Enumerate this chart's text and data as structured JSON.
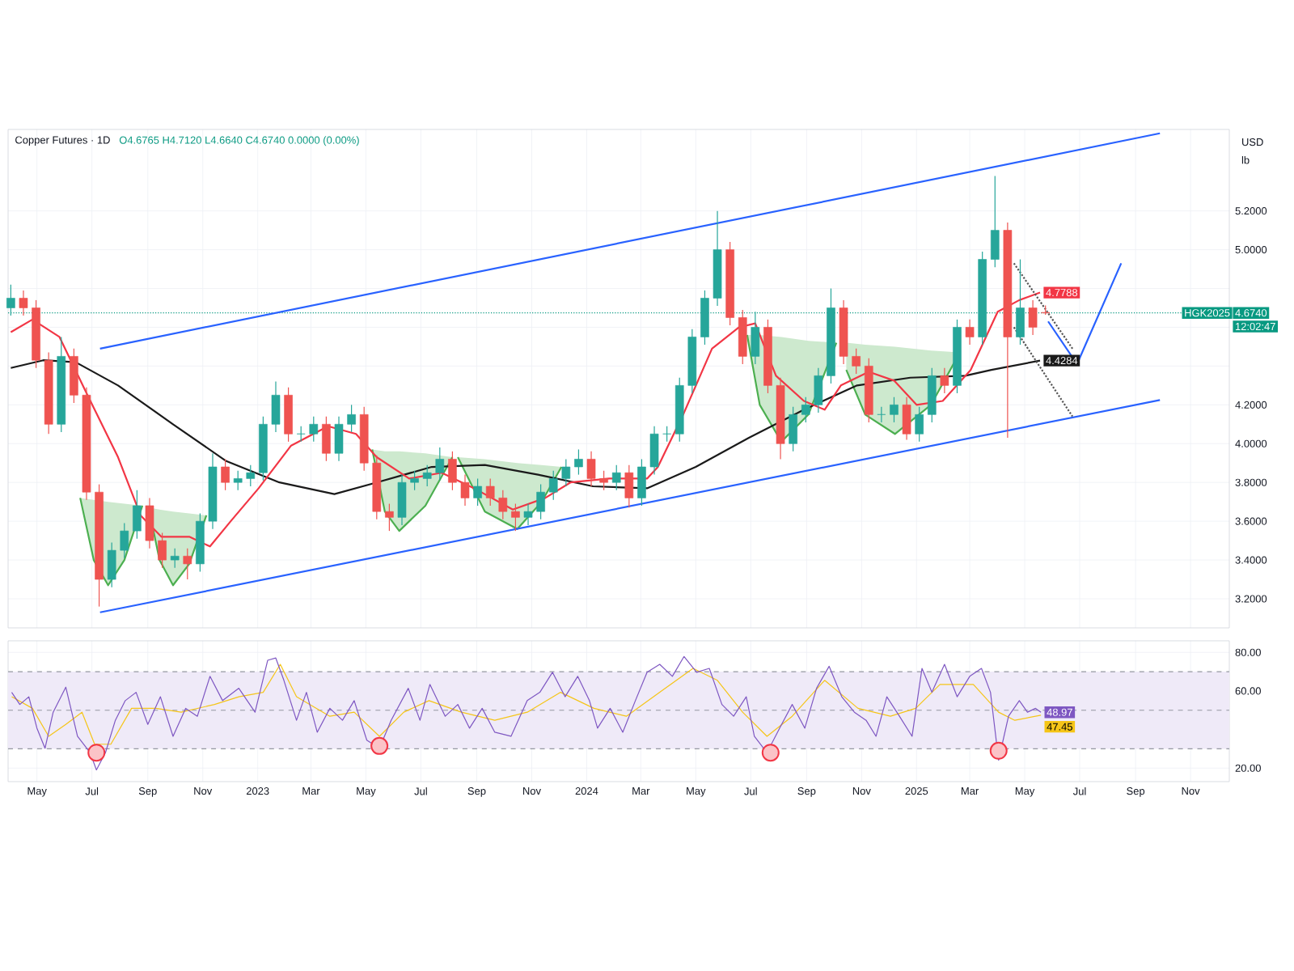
{
  "chart_data": [
    {
      "type": "candlestick",
      "title": "Copper Futures · 1D",
      "subtitle": "O4.6765 H4.7120 L4.6640 C4.6740 0.0000 (0.00%)",
      "x": [
        "2022-04-02",
        "2022-04-16",
        "2022-04-30",
        "2022-05-14",
        "2022-05-28",
        "2022-06-11",
        "2022-06-25",
        "2022-07-09",
        "2022-07-23",
        "2022-08-06",
        "2022-08-20",
        "2022-09-03",
        "2022-09-17",
        "2022-10-01",
        "2022-10-15",
        "2022-10-29",
        "2022-11-12",
        "2022-11-26",
        "2022-12-10",
        "2022-12-24",
        "2023-01-07",
        "2023-01-21",
        "2023-02-04",
        "2023-02-18",
        "2023-03-04",
        "2023-03-18",
        "2023-04-01",
        "2023-04-15",
        "2023-04-29",
        "2023-05-13",
        "2023-05-27",
        "2023-06-10",
        "2023-06-24",
        "2023-07-08",
        "2023-07-22",
        "2023-08-05",
        "2023-08-19",
        "2023-09-02",
        "2023-09-16",
        "2023-09-30",
        "2023-10-14",
        "2023-10-28",
        "2023-11-11",
        "2023-11-25",
        "2023-12-09",
        "2023-12-23",
        "2024-01-06",
        "2024-01-20",
        "2024-02-03",
        "2024-02-17",
        "2024-03-02",
        "2024-03-16",
        "2024-03-30",
        "2024-04-13",
        "2024-04-27",
        "2024-05-11",
        "2024-05-25",
        "2024-06-08",
        "2024-06-22",
        "2024-07-06",
        "2024-07-20",
        "2024-08-03",
        "2024-08-17",
        "2024-08-31",
        "2024-09-14",
        "2024-09-28",
        "2024-10-12",
        "2024-10-26",
        "2024-11-09",
        "2024-11-23",
        "2024-12-07",
        "2024-12-21",
        "2025-01-04",
        "2025-01-18",
        "2025-02-01",
        "2025-02-15",
        "2025-03-01",
        "2025-03-15",
        "2025-03-29",
        "2025-04-12",
        "2025-04-26",
        "2025-05-10",
        "2025-05-24"
      ],
      "ohlc": [
        [
          4.7,
          4.82,
          4.66,
          4.75
        ],
        [
          4.75,
          4.79,
          4.66,
          4.7
        ],
        [
          4.7,
          4.74,
          4.39,
          4.43
        ],
        [
          4.43,
          4.47,
          4.05,
          4.1
        ],
        [
          4.1,
          4.55,
          4.06,
          4.45
        ],
        [
          4.45,
          4.49,
          4.21,
          4.25
        ],
        [
          4.25,
          4.29,
          3.71,
          3.75
        ],
        [
          3.75,
          3.79,
          3.16,
          3.3
        ],
        [
          3.3,
          3.49,
          3.26,
          3.45
        ],
        [
          3.45,
          3.59,
          3.41,
          3.55
        ],
        [
          3.55,
          3.76,
          3.51,
          3.68
        ],
        [
          3.68,
          3.72,
          3.46,
          3.5
        ],
        [
          3.5,
          3.54,
          3.36,
          3.4
        ],
        [
          3.4,
          3.46,
          3.36,
          3.42
        ],
        [
          3.42,
          3.46,
          3.3,
          3.38
        ],
        [
          3.38,
          3.64,
          3.34,
          3.6
        ],
        [
          3.6,
          3.95,
          3.56,
          3.88
        ],
        [
          3.88,
          3.92,
          3.76,
          3.8
        ],
        [
          3.8,
          3.86,
          3.76,
          3.82
        ],
        [
          3.82,
          3.89,
          3.78,
          3.85
        ],
        [
          3.85,
          4.14,
          3.81,
          4.1
        ],
        [
          4.1,
          4.32,
          4.06,
          4.25
        ],
        [
          4.25,
          4.29,
          4.01,
          4.05
        ],
        [
          4.05,
          4.09,
          4.01,
          4.05
        ],
        [
          4.05,
          4.14,
          4.01,
          4.1
        ],
        [
          4.1,
          4.14,
          3.91,
          3.95
        ],
        [
          3.95,
          4.14,
          3.91,
          4.1
        ],
        [
          4.1,
          4.2,
          4.06,
          4.15
        ],
        [
          4.15,
          4.19,
          3.86,
          3.9
        ],
        [
          3.9,
          3.94,
          3.61,
          3.65
        ],
        [
          3.65,
          3.69,
          3.55,
          3.62
        ],
        [
          3.62,
          3.84,
          3.58,
          3.8
        ],
        [
          3.8,
          3.86,
          3.76,
          3.82
        ],
        [
          3.82,
          3.89,
          3.78,
          3.85
        ],
        [
          3.85,
          3.98,
          3.81,
          3.92
        ],
        [
          3.92,
          3.96,
          3.76,
          3.8
        ],
        [
          3.8,
          3.84,
          3.68,
          3.72
        ],
        [
          3.72,
          3.82,
          3.68,
          3.78
        ],
        [
          3.78,
          3.82,
          3.68,
          3.72
        ],
        [
          3.72,
          3.76,
          3.61,
          3.65
        ],
        [
          3.65,
          3.69,
          3.55,
          3.62
        ],
        [
          3.62,
          3.69,
          3.58,
          3.65
        ],
        [
          3.65,
          3.79,
          3.61,
          3.75
        ],
        [
          3.75,
          3.86,
          3.71,
          3.82
        ],
        [
          3.82,
          3.92,
          3.78,
          3.88
        ],
        [
          3.88,
          3.97,
          3.84,
          3.92
        ],
        [
          3.92,
          3.96,
          3.78,
          3.82
        ],
        [
          3.82,
          3.86,
          3.76,
          3.8
        ],
        [
          3.8,
          3.89,
          3.76,
          3.85
        ],
        [
          3.85,
          3.89,
          3.67,
          3.72
        ],
        [
          3.72,
          3.92,
          3.68,
          3.88
        ],
        [
          3.88,
          4.09,
          3.84,
          4.05
        ],
        [
          4.05,
          4.09,
          4.01,
          4.05
        ],
        [
          4.05,
          4.34,
          4.01,
          4.3
        ],
        [
          4.3,
          4.59,
          4.26,
          4.55
        ],
        [
          4.55,
          4.79,
          4.51,
          4.75
        ],
        [
          4.75,
          5.2,
          4.71,
          5.0
        ],
        [
          5.0,
          5.04,
          4.61,
          4.65
        ],
        [
          4.65,
          4.69,
          4.41,
          4.45
        ],
        [
          4.45,
          4.68,
          4.41,
          4.6
        ],
        [
          4.6,
          4.64,
          4.26,
          4.3
        ],
        [
          4.3,
          4.34,
          3.92,
          4.0
        ],
        [
          4.0,
          4.19,
          3.96,
          4.15
        ],
        [
          4.15,
          4.24,
          4.11,
          4.2
        ],
        [
          4.2,
          4.39,
          4.16,
          4.35
        ],
        [
          4.35,
          4.8,
          4.31,
          4.7
        ],
        [
          4.7,
          4.74,
          4.41,
          4.45
        ],
        [
          4.45,
          4.49,
          4.36,
          4.4
        ],
        [
          4.4,
          4.44,
          4.11,
          4.15
        ],
        [
          4.15,
          4.19,
          4.11,
          4.15
        ],
        [
          4.15,
          4.24,
          4.11,
          4.2
        ],
        [
          4.2,
          4.24,
          4.02,
          4.05
        ],
        [
          4.05,
          4.19,
          4.01,
          4.15
        ],
        [
          4.15,
          4.39,
          4.11,
          4.35
        ],
        [
          4.35,
          4.39,
          4.26,
          4.3
        ],
        [
          4.3,
          4.64,
          4.26,
          4.6
        ],
        [
          4.6,
          4.64,
          4.51,
          4.55
        ],
        [
          4.55,
          4.99,
          4.51,
          4.95
        ],
        [
          4.95,
          5.38,
          4.91,
          5.1
        ],
        [
          5.1,
          5.14,
          4.03,
          4.55
        ],
        [
          4.55,
          4.95,
          4.51,
          4.7
        ],
        [
          4.7,
          4.74,
          4.56,
          4.6
        ],
        [
          4.6765,
          4.712,
          4.664,
          4.674
        ]
      ],
      "xlim": [
        "2022-03-30",
        "2025-12-14"
      ],
      "xticks": [
        {
          "value": "2022-05-01",
          "label": null
        },
        {
          "value": "2022-07-01",
          "label": null
        },
        {
          "value": "2022-09-01",
          "label": null
        },
        {
          "value": "2022-11-01",
          "label": null
        },
        {
          "value": "2023-01-01",
          "label": null
        },
        {
          "value": "2023-03-01",
          "label": null
        },
        {
          "value": "2023-05-01",
          "label": null
        },
        {
          "value": "2023-07-01",
          "label": null
        },
        {
          "value": "2023-09-01",
          "label": null
        },
        {
          "value": "2023-11-01",
          "label": null
        },
        {
          "value": "2024-01-01",
          "label": null
        },
        {
          "value": "2024-03-01",
          "label": null
        },
        {
          "value": "2024-05-01",
          "label": null
        },
        {
          "value": "2024-07-01",
          "label": null
        },
        {
          "value": "2024-09-01",
          "label": null
        },
        {
          "value": "2024-11-01",
          "label": null
        },
        {
          "value": "2025-01-01",
          "label": null
        },
        {
          "value": "2025-03-01",
          "label": null
        },
        {
          "value": "2025-05-01",
          "label": null
        },
        {
          "value": "2025-07-01",
          "label": null
        },
        {
          "value": "2025-09-01",
          "label": null
        },
        {
          "value": "2025-11-01",
          "label": null
        }
      ],
      "ylim": [
        3.05,
        5.62
      ],
      "yticks": [
        {
          "value": 3.2,
          "label": "3.2000"
        },
        {
          "value": 3.4,
          "label": "3.4000"
        },
        {
          "value": 3.6,
          "label": "3.6000"
        },
        {
          "value": 3.8,
          "label": "3.8000"
        },
        {
          "value": 4.0,
          "label": "4.0000"
        },
        {
          "value": 4.2,
          "label": "4.2000"
        },
        {
          "value": 4.4,
          "label": null
        },
        {
          "value": 4.6,
          "label": null
        },
        {
          "value": 4.8,
          "label": null
        },
        {
          "value": 5.0,
          "label": "5.0000"
        },
        {
          "value": 5.2,
          "label": "5.2000"
        }
      ],
      "tick_labels": "y",
      "grid": true,
      "ref_lines": [
        {
          "axis": "y",
          "value": 4.674,
          "label": "4.6740",
          "color": "#089981",
          "line_style": "dotted"
        }
      ],
      "annotations": [
        "USD",
        "lb",
        "HGK2025",
        "12:02:47"
      ],
      "series": [
        {
          "type": "line",
          "color": "#4caf50",
          "x": [
            "2022-06-18",
            "2022-07-03",
            "2022-07-19",
            "2022-08-06",
            "2022-08-26"
          ],
          "values": [
            3.72,
            3.4,
            3.27,
            3.4,
            3.68
          ],
          "lower": [
            3.72,
            3.4,
            3.27,
            3.4,
            3.68
          ],
          "upper": [
            3.72,
            3.71,
            3.7,
            3.69,
            3.68
          ]
        },
        {
          "type": "line",
          "color": "#4caf50",
          "x": [
            "2022-09-02",
            "2022-09-14",
            "2022-09-29",
            "2022-10-17",
            "2022-11-05"
          ],
          "values": [
            3.67,
            3.4,
            3.27,
            3.38,
            3.63
          ],
          "lower": [
            3.67,
            3.4,
            3.27,
            3.38,
            3.63
          ],
          "upper": [
            3.67,
            3.66,
            3.65,
            3.64,
            3.63
          ]
        },
        {
          "type": "line",
          "color": "#4caf50",
          "x": [
            "2023-05-08",
            "2023-05-22",
            "2023-06-07",
            "2023-07-06",
            "2023-08-05"
          ],
          "values": [
            3.97,
            3.65,
            3.55,
            3.68,
            3.93
          ],
          "lower": [
            3.97,
            3.65,
            3.55,
            3.68,
            3.93
          ],
          "upper": [
            3.97,
            3.96,
            3.96,
            3.95,
            3.93
          ]
        },
        {
          "type": "line",
          "color": "#4caf50",
          "x": [
            "2023-08-11",
            "2023-09-10",
            "2023-10-16",
            "2023-11-12",
            "2023-12-04"
          ],
          "values": [
            3.93,
            3.65,
            3.56,
            3.7,
            3.88
          ],
          "lower": [
            3.93,
            3.65,
            3.56,
            3.7,
            3.88
          ],
          "upper": [
            3.93,
            3.92,
            3.9,
            3.89,
            3.88
          ]
        },
        {
          "type": "line",
          "color": "#4caf50",
          "x": [
            "2024-06-27",
            "2024-07-11",
            "2024-08-04",
            "2024-09-03",
            "2024-10-04"
          ],
          "values": [
            4.56,
            4.2,
            4.01,
            4.15,
            4.52
          ],
          "lower": [
            4.56,
            4.2,
            4.01,
            4.15,
            4.52
          ],
          "upper": [
            4.56,
            4.56,
            4.55,
            4.53,
            4.52
          ]
        },
        {
          "type": "line",
          "color": "#4caf50",
          "x": [
            "2024-10-15",
            "2024-11-05",
            "2024-12-08",
            "2025-01-17",
            "2025-02-18"
          ],
          "values": [
            4.38,
            4.15,
            4.05,
            4.2,
            4.47
          ],
          "lower": [
            4.38,
            4.15,
            4.05,
            4.2,
            4.47
          ],
          "upper": [
            4.52,
            4.51,
            4.5,
            4.48,
            4.47
          ]
        },
        {
          "type": "line",
          "color": "#2962ff",
          "x": [
            "2022-07-10",
            "2025-09-28"
          ],
          "values": [
            4.49,
            5.6
          ]
        },
        {
          "type": "line",
          "color": "#2962ff",
          "x": [
            "2022-07-10",
            "2025-09-28"
          ],
          "values": [
            3.13,
            4.225
          ]
        },
        {
          "type": "line",
          "color": "#1a1a1a",
          "x": [
            "2022-04-02",
            "2022-05-08",
            "2022-06-13",
            "2022-07-30",
            "2022-09-29",
            "2022-11-27",
            "2023-01-25",
            "2023-03-27",
            "2023-05-13",
            "2023-07-13",
            "2023-09-10",
            "2023-11-08",
            "2024-01-08",
            "2024-03-08",
            "2024-05-01",
            "2024-06-29",
            "2024-08-29",
            "2024-10-27",
            "2024-12-25",
            "2025-02-24",
            "2025-03-25",
            "2025-05-18"
          ],
          "values": [
            4.39,
            4.43,
            4.42,
            4.3,
            4.1,
            3.91,
            3.8,
            3.74,
            3.8,
            3.88,
            3.89,
            3.84,
            3.78,
            3.77,
            3.88,
            4.03,
            4.175,
            4.3,
            4.34,
            4.35,
            4.38,
            4.4284
          ],
          "value_labels": [
            null,
            null,
            null,
            null,
            null,
            null,
            null,
            null,
            null,
            null,
            null,
            null,
            null,
            null,
            null,
            null,
            null,
            null,
            null,
            null,
            null,
            "4.4284"
          ]
        },
        {
          "type": "line",
          "color": "#f23645",
          "x": [
            "2022-04-02",
            "2022-04-26",
            "2022-05-26",
            "2022-06-24",
            "2022-07-30",
            "2022-08-24",
            "2022-09-16",
            "2022-10-17",
            "2022-11-09",
            "2022-12-02",
            "2023-01-02",
            "2023-02-07",
            "2023-03-20",
            "2023-04-20",
            "2023-05-13",
            "2023-06-18",
            "2023-07-24",
            "2023-08-29",
            "2023-10-11",
            "2023-11-16",
            "2023-12-14",
            "2024-01-26",
            "2024-02-19",
            "2024-03-08",
            "2024-03-20",
            "2024-04-18",
            "2024-05-19",
            "2024-06-18",
            "2024-07-06",
            "2024-07-29",
            "2024-08-29",
            "2024-09-21",
            "2024-10-09",
            "2024-11-09",
            "2024-12-07",
            "2025-01-01",
            "2025-01-30",
            "2025-03-02",
            "2025-04-01",
            "2025-04-25",
            "2025-05-18"
          ],
          "values": [
            4.575,
            4.64,
            4.55,
            4.27,
            3.93,
            3.63,
            3.52,
            3.52,
            3.47,
            3.6,
            3.77,
            3.99,
            4.09,
            4.05,
            3.93,
            3.82,
            3.85,
            3.77,
            3.66,
            3.72,
            3.8,
            3.82,
            3.82,
            3.82,
            3.88,
            4.16,
            4.49,
            4.6,
            4.62,
            4.35,
            4.22,
            4.175,
            4.3,
            4.37,
            4.325,
            4.2,
            4.22,
            4.38,
            4.68,
            4.74,
            4.7788
          ],
          "value_labels": [
            null,
            null,
            null,
            null,
            null,
            null,
            null,
            null,
            null,
            null,
            null,
            null,
            null,
            null,
            null,
            null,
            null,
            null,
            null,
            null,
            null,
            null,
            null,
            null,
            null,
            null,
            null,
            null,
            null,
            null,
            null,
            null,
            null,
            null,
            null,
            null,
            null,
            null,
            null,
            null,
            "4.7788"
          ]
        },
        {
          "type": "line",
          "color": "#555555",
          "line_style": "dotted",
          "x": [
            "2025-04-19",
            "2025-06-23"
          ],
          "values": [
            4.93,
            4.49
          ]
        },
        {
          "type": "line",
          "color": "#555555",
          "line_style": "dotted",
          "x": [
            "2025-04-19",
            "2025-06-23"
          ],
          "values": [
            4.6,
            4.14
          ]
        },
        {
          "type": "line",
          "color": "#2962ff",
          "x": [
            "2025-05-27",
            "2025-06-28",
            "2025-08-16"
          ],
          "values": [
            4.63,
            4.41,
            4.93
          ]
        }
      ]
    },
    {
      "type": "line",
      "xlim": [
        "2022-03-30",
        "2025-12-14"
      ],
      "xticks": [
        {
          "value": "2022-05-01",
          "label": "May"
        },
        {
          "value": "2022-07-01",
          "label": "Jul"
        },
        {
          "value": "2022-09-01",
          "label": "Sep"
        },
        {
          "value": "2022-11-01",
          "label": "Nov"
        },
        {
          "value": "2023-01-01",
          "label": "2023"
        },
        {
          "value": "2023-03-01",
          "label": "Mar"
        },
        {
          "value": "2023-05-01",
          "label": "May"
        },
        {
          "value": "2023-07-01",
          "label": "Jul"
        },
        {
          "value": "2023-09-01",
          "label": "Sep"
        },
        {
          "value": "2023-11-01",
          "label": "Nov"
        },
        {
          "value": "2024-01-01",
          "label": "2024"
        },
        {
          "value": "2024-03-01",
          "label": "Mar"
        },
        {
          "value": "2024-05-01",
          "label": "May"
        },
        {
          "value": "2024-07-01",
          "label": "Jul"
        },
        {
          "value": "2024-09-01",
          "label": "Sep"
        },
        {
          "value": "2024-11-01",
          "label": "Nov"
        },
        {
          "value": "2025-01-01",
          "label": "2025"
        },
        {
          "value": "2025-03-01",
          "label": "Mar"
        },
        {
          "value": "2025-05-01",
          "label": "May"
        },
        {
          "value": "2025-07-01",
          "label": "Jul"
        },
        {
          "value": "2025-09-01",
          "label": "Sep"
        },
        {
          "value": "2025-11-01",
          "label": "Nov"
        }
      ],
      "ylim": [
        13,
        86
      ],
      "yticks": [
        {
          "value": 20,
          "label": "20.00"
        },
        {
          "value": 60,
          "label": "60.00"
        },
        {
          "value": 80,
          "label": "80.00"
        }
      ],
      "grid": true,
      "bands": [
        {
          "axis": "y",
          "from": 30,
          "to": 70,
          "color": "#efeaf8"
        }
      ],
      "ref_lines": [
        {
          "axis": "y",
          "value": 70,
          "color": "#9598a1",
          "line_style": "dashed"
        },
        {
          "axis": "y",
          "value": 50,
          "color": "#9598a1",
          "line_style": "dashed"
        },
        {
          "axis": "y",
          "value": 30,
          "color": "#9598a1",
          "line_style": "dashed"
        }
      ],
      "series": [
        {
          "type": "scatter",
          "marker": "circle",
          "color": "#f23645",
          "x": [
            "2022-07-06",
            "2023-05-16",
            "2024-07-23",
            "2025-04-02"
          ],
          "values": [
            28,
            31.5,
            28,
            29
          ]
        },
        {
          "type": "line",
          "color": "#f5c518",
          "x": [
            "2022-04-03",
            "2022-04-26",
            "2022-05-14",
            "2022-06-02",
            "2022-06-20",
            "2022-07-04",
            "2022-07-22",
            "2022-08-14",
            "2022-09-10",
            "2022-10-08",
            "2022-11-14",
            "2022-12-11",
            "2023-01-07",
            "2023-01-26",
            "2023-02-13",
            "2023-03-22",
            "2023-04-18",
            "2023-05-16",
            "2023-06-12",
            "2023-07-10",
            "2023-08-15",
            "2023-09-21",
            "2023-10-27",
            "2023-12-03",
            "2024-01-09",
            "2024-02-14",
            "2024-03-22",
            "2024-04-28",
            "2024-05-25",
            "2024-06-22",
            "2024-07-19",
            "2024-08-16",
            "2024-09-21",
            "2024-10-28",
            "2024-12-03",
            "2024-12-31",
            "2025-01-27",
            "2025-03-05",
            "2025-04-02",
            "2025-04-20",
            "2025-05-19"
          ],
          "values": [
            57,
            51,
            36.5,
            42.7,
            49,
            32.4,
            32.4,
            51,
            51,
            49,
            53,
            57,
            59.3,
            73.8,
            57,
            46.9,
            49,
            36.5,
            49,
            55,
            49,
            44.8,
            49,
            59.3,
            51,
            46.9,
            59.3,
            71.7,
            65.5,
            49,
            36.5,
            46.9,
            65.5,
            51,
            46.9,
            51,
            63.4,
            63.4,
            49,
            44.8,
            47.45
          ],
          "value_labels": [
            null,
            null,
            null,
            null,
            null,
            null,
            null,
            null,
            null,
            null,
            null,
            null,
            null,
            null,
            null,
            null,
            null,
            null,
            null,
            null,
            null,
            null,
            null,
            null,
            null,
            null,
            null,
            null,
            null,
            null,
            null,
            null,
            null,
            null,
            null,
            null,
            null,
            null,
            null,
            null,
            "47.45"
          ]
        },
        {
          "type": "line",
          "color": "#7e57c2",
          "x": [
            "2022-04-03",
            "2022-04-12",
            "2022-04-22",
            "2022-05-01",
            "2022-05-10",
            "2022-05-19",
            "2022-06-02",
            "2022-06-15",
            "2022-06-29",
            "2022-07-06",
            "2022-07-16",
            "2022-07-27",
            "2022-08-07",
            "2022-08-19",
            "2022-09-01",
            "2022-09-15",
            "2022-09-29",
            "2022-10-13",
            "2022-10-26",
            "2022-11-09",
            "2022-11-23",
            "2022-12-11",
            "2022-12-29",
            "2023-01-12",
            "2023-01-21",
            "2023-01-30",
            "2023-02-13",
            "2023-02-24",
            "2023-03-08",
            "2023-03-22",
            "2023-04-05",
            "2023-04-18",
            "2023-05-02",
            "2023-05-16",
            "2023-05-29",
            "2023-06-17",
            "2023-06-30",
            "2023-07-11",
            "2023-07-28",
            "2023-08-11",
            "2023-08-24",
            "2023-09-07",
            "2023-09-21",
            "2023-10-09",
            "2023-10-27",
            "2023-11-10",
            "2023-11-24",
            "2023-12-08",
            "2023-12-22",
            "2024-01-04",
            "2024-01-13",
            "2024-01-27",
            "2024-02-10",
            "2024-02-24",
            "2024-03-08",
            "2024-03-22",
            "2024-04-05",
            "2024-04-18",
            "2024-05-02",
            "2024-05-16",
            "2024-05-30",
            "2024-06-12",
            "2024-06-26",
            "2024-07-05",
            "2024-07-19",
            "2024-08-02",
            "2024-08-16",
            "2024-08-30",
            "2024-09-12",
            "2024-09-26",
            "2024-10-10",
            "2024-10-24",
            "2024-11-06",
            "2024-11-17",
            "2024-11-29",
            "2024-12-13",
            "2024-12-27",
            "2025-01-07",
            "2025-01-18",
            "2025-02-01",
            "2025-02-15",
            "2025-03-01",
            "2025-03-14",
            "2025-03-24",
            "2025-04-02",
            "2025-04-13",
            "2025-04-25",
            "2025-05-04",
            "2025-05-13",
            "2025-05-19"
          ],
          "values": [
            59.3,
            53,
            57,
            40.7,
            30.3,
            49,
            62,
            36.5,
            28,
            19.1,
            28,
            44.8,
            55,
            59.3,
            42.7,
            57,
            36.5,
            51,
            46.9,
            67.6,
            55,
            61.4,
            49,
            75.9,
            77.1,
            65.5,
            44.8,
            59.3,
            38.6,
            51,
            44.8,
            55,
            34.5,
            30.3,
            44.8,
            61.4,
            44.8,
            63.4,
            46.9,
            53,
            40.7,
            51,
            38.6,
            36.5,
            55,
            59.3,
            69.7,
            57,
            67.6,
            55,
            40.7,
            51,
            38.6,
            55,
            69.7,
            73.8,
            67.6,
            77.9,
            69.7,
            71.7,
            53,
            46.9,
            57,
            36.5,
            28,
            40.7,
            53,
            40.7,
            61.4,
            72.8,
            57,
            49,
            44.8,
            36.5,
            57,
            46.9,
            36.5,
            71.7,
            59.3,
            73.8,
            57,
            67.6,
            71.7,
            59.3,
            24.1,
            46.9,
            55,
            49,
            51,
            48.97
          ],
          "value_labels": [
            null,
            null,
            null,
            null,
            null,
            null,
            null,
            null,
            null,
            null,
            null,
            null,
            null,
            null,
            null,
            null,
            null,
            null,
            null,
            null,
            null,
            null,
            null,
            null,
            null,
            null,
            null,
            null,
            null,
            null,
            null,
            null,
            null,
            null,
            null,
            null,
            null,
            null,
            null,
            null,
            null,
            null,
            null,
            null,
            null,
            null,
            null,
            null,
            null,
            null,
            null,
            null,
            null,
            null,
            null,
            null,
            null,
            null,
            null,
            null,
            null,
            null,
            null,
            null,
            null,
            null,
            null,
            null,
            null,
            null,
            null,
            null,
            null,
            null,
            null,
            null,
            null,
            null,
            null,
            null,
            null,
            null,
            null,
            null,
            null,
            null,
            null,
            null,
            null,
            "48.97"
          ]
        }
      ]
    }
  ]
}
